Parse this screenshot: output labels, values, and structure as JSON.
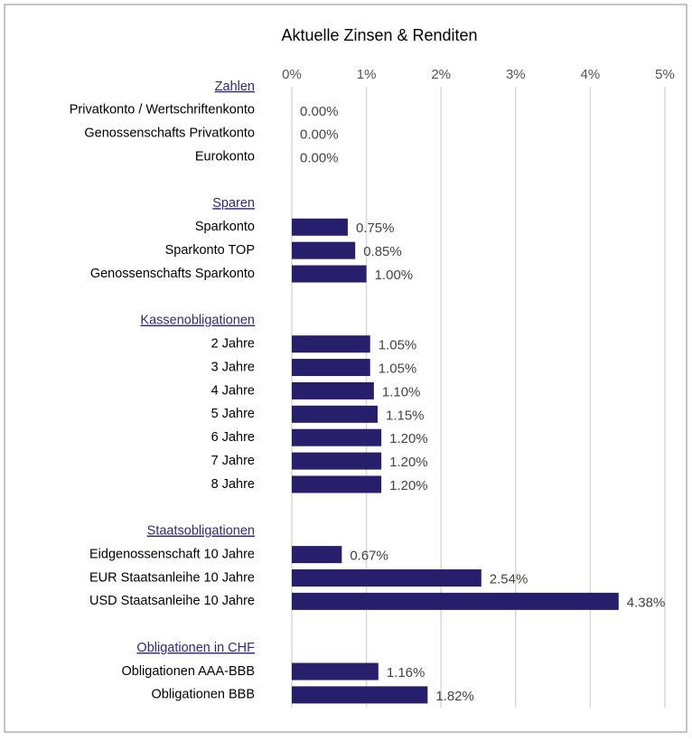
{
  "chart_data": {
    "type": "bar",
    "orientation": "horizontal",
    "title": "Aktuelle Zinsen & Renditen",
    "color": "#271e6c",
    "header_color": "#2e2a7a",
    "grid": true,
    "xlim": [
      0,
      5
    ],
    "xticks": [
      {
        "value": 0,
        "label": "0%"
      },
      {
        "value": 1,
        "label": "1%"
      },
      {
        "value": 2,
        "label": "2%"
      },
      {
        "value": 3,
        "label": "3%"
      },
      {
        "value": 4,
        "label": "4%"
      },
      {
        "value": 5,
        "label": "5%"
      }
    ],
    "groups": [
      {
        "name": "Zahlen",
        "categories": [
          "Privatkonto / Wertschriftenkonto",
          "Genossenschafts Privatkonto",
          "Eurokonto"
        ],
        "values": [
          0,
          0,
          0
        ],
        "value_labels": [
          "0.00%",
          "0.00%",
          "0.00%"
        ]
      },
      {
        "name": "Sparen",
        "categories": [
          "Sparkonto",
          "Sparkonto TOP",
          "Genossenschafts Sparkonto"
        ],
        "values": [
          0.75,
          0.85,
          1.0
        ],
        "value_labels": [
          "0.75%",
          "0.85%",
          "1.00%"
        ]
      },
      {
        "name": "Kassenobligationen",
        "categories": [
          "2 Jahre",
          "3 Jahre",
          "4 Jahre",
          "5 Jahre",
          "6 Jahre",
          "7 Jahre",
          "8 Jahre"
        ],
        "values": [
          1.05,
          1.05,
          1.1,
          1.15,
          1.2,
          1.2,
          1.2
        ],
        "value_labels": [
          "1.05%",
          "1.05%",
          "1.10%",
          "1.15%",
          "1.20%",
          "1.20%",
          "1.20%"
        ]
      },
      {
        "name": "Staatsobligationen",
        "categories": [
          "Eidgenossenschaft 10 Jahre",
          "EUR Staatsanleihe 10 Jahre",
          "USD Staatsanleihe 10 Jahre"
        ],
        "values": [
          0.67,
          2.54,
          4.38
        ],
        "value_labels": [
          "0.67%",
          "2.54%",
          "4.38%"
        ]
      },
      {
        "name": "Obligationen in CHF",
        "categories": [
          "Obligationen AAA-BBB",
          "Obligationen BBB"
        ],
        "values": [
          1.16,
          1.82
        ],
        "value_labels": [
          "1.16%",
          "1.82%"
        ]
      }
    ]
  }
}
